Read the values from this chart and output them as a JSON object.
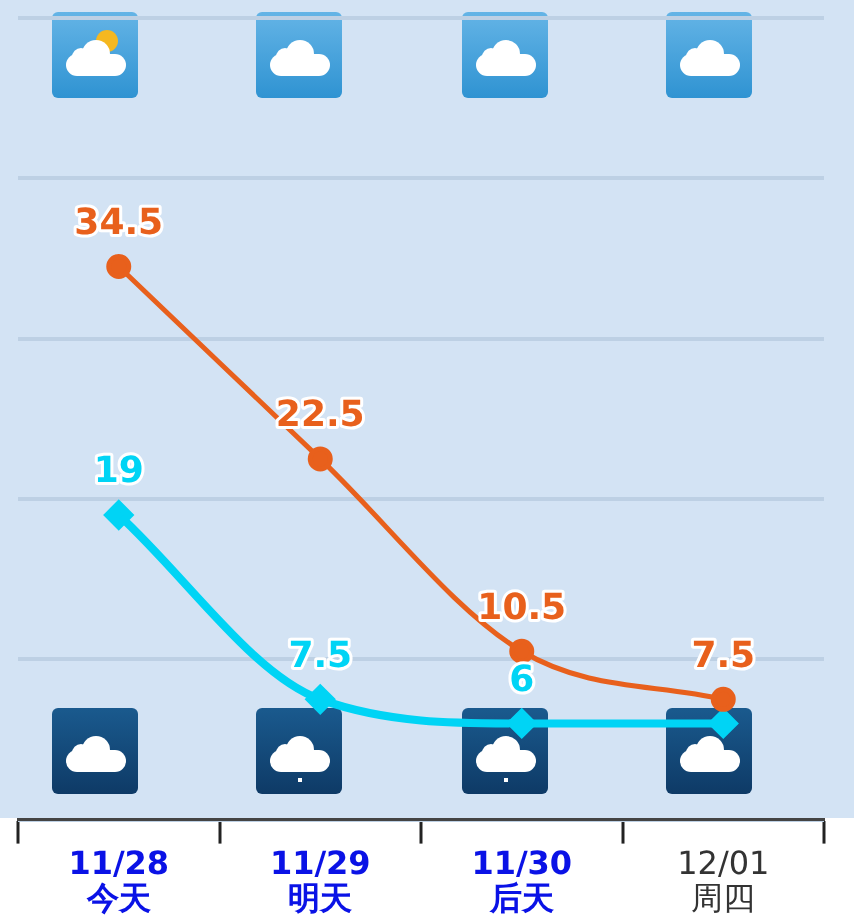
{
  "chart_data": {
    "type": "line",
    "categories": [
      "11/28\n今天",
      "11/29\n明天",
      "11/30\n后天",
      "12/01\n周四"
    ],
    "series": [
      {
        "color": "#e8601c",
        "values": [
          34.5,
          22.5,
          10.5,
          7.5
        ],
        "marker": "circle",
        "value_labels": [
          "34.5",
          "22.5",
          "10.5",
          "7.5"
        ]
      },
      {
        "color": "#00d4f5",
        "values": [
          19,
          7.5,
          6,
          6
        ],
        "marker": "diamond",
        "value_labels": [
          "19",
          "7.5",
          "6",
          null
        ]
      }
    ],
    "ylim": [
      0,
      50
    ],
    "yticks": [
      {
        "value": 0,
        "label": null
      },
      {
        "value": 10,
        "label": null
      },
      {
        "value": 20,
        "label": null
      },
      {
        "value": 30,
        "label": null
      },
      {
        "value": 40,
        "label": null
      },
      {
        "value": 50,
        "label": null
      }
    ],
    "grid": "y",
    "legend": false,
    "tick_labels": "x"
  }
}
